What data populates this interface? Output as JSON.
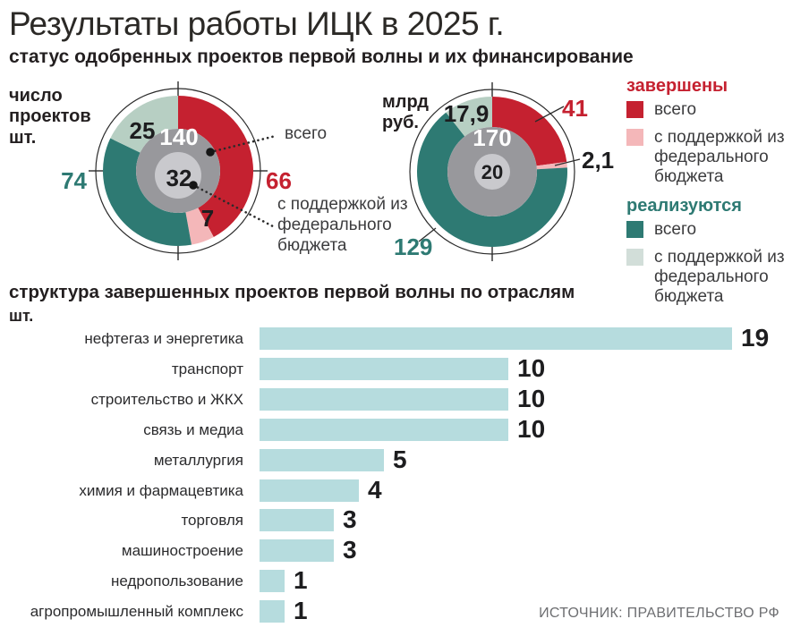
{
  "header": {
    "title": "Результаты работы ИЦК в 2025 г.",
    "subtitle": "статус одобренных проектов первой волны и их финансирование"
  },
  "colors": {
    "completed_total": "#c52130",
    "completed_support": "#f4b7b9",
    "active_total": "#2e7a73",
    "active_support": "#b7cfc3",
    "legend_active_support": "#d2ded9",
    "center_gray": "#98989c",
    "center_light_gray": "#c9c9cd",
    "bar": "#b6dcde",
    "line": "#2b2b2b"
  },
  "callouts": {
    "total": "всего",
    "support": "с поддержкой из федерального бюджета"
  },
  "legend": {
    "groups": [
      {
        "title": "завершены",
        "items": [
          {
            "label": "всего",
            "color": "#c52130"
          },
          {
            "label": "с поддержкой из федерального бюджета",
            "color": "#f4b7b9"
          }
        ]
      },
      {
        "title": "реализуются",
        "items": [
          {
            "label": "всего",
            "color": "#2e7a73"
          },
          {
            "label": "с поддержкой из федерального бюджета",
            "color": "#d2ded9"
          }
        ]
      }
    ]
  },
  "chart_data": [
    {
      "type": "donut",
      "title": "число проектов шт.",
      "completed_total": 66,
      "completed_support": 7,
      "active_total": 74,
      "active_support": 25,
      "center_total": "140",
      "center_support": "32",
      "labels": {
        "completed": "66",
        "completed_support": "7",
        "active": "74",
        "active_support": "25"
      }
    },
    {
      "type": "donut",
      "title": "млрд руб.",
      "completed_total": 41,
      "completed_support": 2.1,
      "active_total": 129,
      "active_support": 17.9,
      "center_total": "170",
      "center_support": "20",
      "labels": {
        "completed": "41",
        "completed_support": "2,1",
        "active": "129",
        "active_support": "17,9"
      }
    },
    {
      "type": "bar",
      "title": "структура завершенных проектов первой волны по отраслям",
      "unit": "шт.",
      "categories": [
        "нефтегаз и энергетика",
        "транспорт",
        "строительство и ЖКХ",
        "связь и медиа",
        "металлургия",
        "химия и фармацевтика",
        "торговля",
        "машиностроение",
        "недропользование",
        "агропромышленный комплекс"
      ],
      "values": [
        19,
        10,
        10,
        10,
        5,
        4,
        3,
        3,
        1,
        1
      ],
      "xlim": [
        0,
        19
      ]
    }
  ],
  "source": "ИСТОЧНИК: ПРАВИТЕЛЬСТВО РФ"
}
